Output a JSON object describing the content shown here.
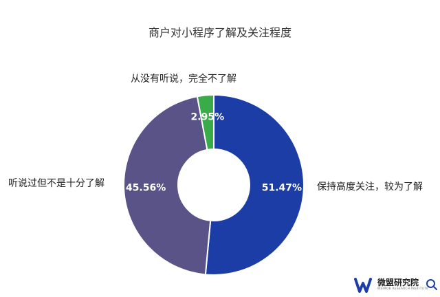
{
  "chart_data": {
    "type": "pie",
    "title": "商户对小程序了解及关注程度",
    "slices": [
      {
        "label": "保持高度关注，较为了解",
        "value": 51.47,
        "value_text": "51.47%",
        "color": "#1c3da6"
      },
      {
        "label": "听说过但不是十分了解",
        "value": 45.56,
        "value_text": "45.56%",
        "color": "#5a5387"
      },
      {
        "label": "从没有听说，完全不了解",
        "value": 2.95,
        "value_text": "2.95%",
        "color": "#3aab49"
      }
    ],
    "start": "12 o'clock, clockwise",
    "hole": true
  },
  "logo": {
    "name": "微盟研究院",
    "sub": "WEIMOB RESEARCH INSTITUTE",
    "mark_color": "#1c3da6"
  }
}
